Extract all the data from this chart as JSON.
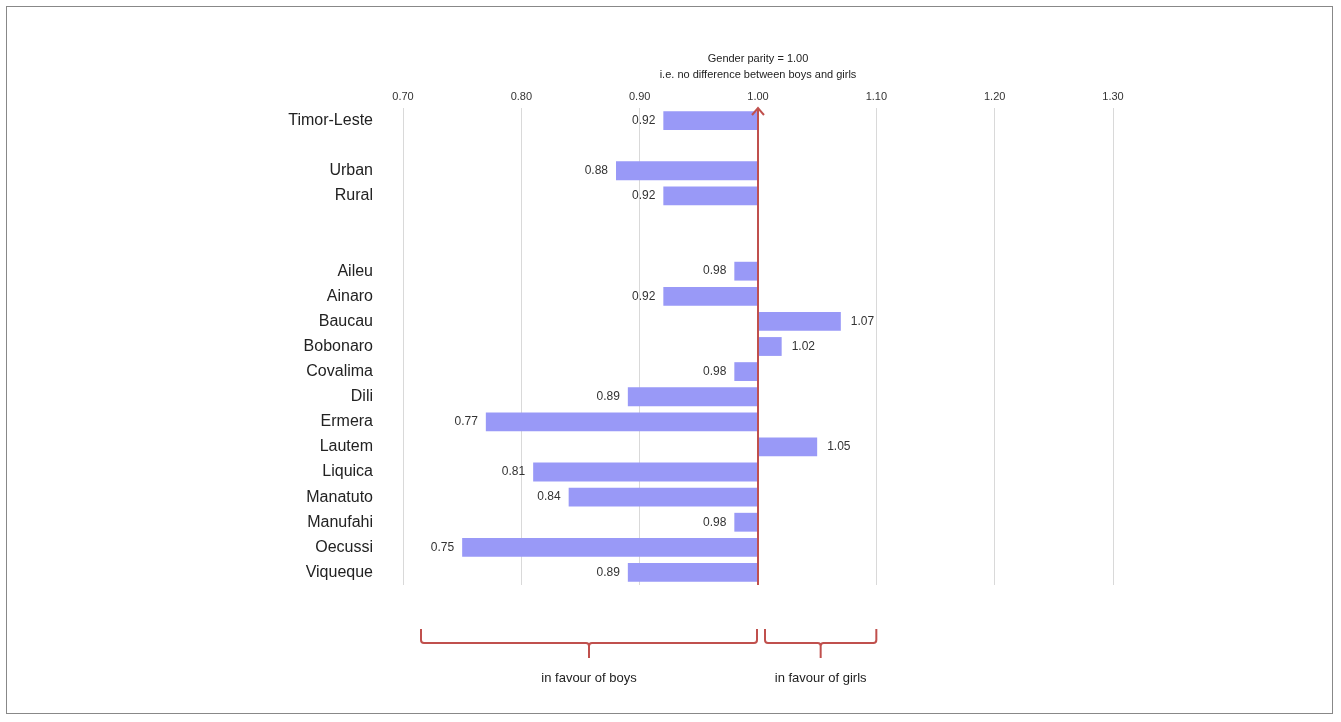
{
  "chart_data": {
    "type": "bar",
    "orientation": "horizontal",
    "color": "#9999f7",
    "categories": [
      "Timor-Leste",
      null,
      "Urban",
      "Rural",
      null,
      null,
      "Aileu",
      "Ainaro",
      "Baucau",
      "Bobonaro",
      "Covalima",
      "Dili",
      "Ermera",
      "Lautem",
      "Liquica",
      "Manatuto",
      "Manufahi",
      "Oecussi",
      "Viqueque"
    ],
    "base": [
      1.0,
      null,
      1.0,
      1.0,
      null,
      null,
      1.0,
      1.0,
      1.0,
      1.0,
      1.0,
      1.0,
      1.0,
      1.0,
      1.0,
      1.0,
      1.0,
      1.0,
      1.0
    ],
    "values": [
      -0.08,
      null,
      -0.12,
      -0.08,
      null,
      null,
      -0.02,
      -0.08,
      0.07,
      0.02,
      -0.02,
      -0.11,
      -0.23,
      0.05,
      -0.19,
      -0.16,
      -0.02,
      -0.25,
      -0.11
    ],
    "value_labels": [
      "0.92",
      null,
      "0.88",
      "0.92",
      null,
      null,
      "0.98",
      "0.92",
      "1.07",
      "1.02",
      "0.98",
      "0.89",
      "0.77",
      "1.05",
      "0.81",
      "0.84",
      "0.98",
      "0.75",
      "0.89"
    ],
    "xlim": [
      0.7,
      1.3
    ],
    "xticks": [
      {
        "value": 0.7,
        "label": "0.70"
      },
      {
        "value": 0.8,
        "label": "0.80"
      },
      {
        "value": 0.9,
        "label": "0.90"
      },
      {
        "value": 1.0,
        "label": "1.00"
      },
      {
        "value": 1.1,
        "label": "1.10"
      },
      {
        "value": 1.2,
        "label": "1.20"
      },
      {
        "value": 1.3,
        "label": "1.30"
      }
    ],
    "grid": "x",
    "legend": false,
    "ref_lines": [
      {
        "axis": "x",
        "value": 1.0,
        "color": "#c0504d"
      }
    ],
    "annotations": [
      "Gender parity = 1.00",
      "i.e. no difference between boys and girls",
      "in favour of boys",
      "in favour of girls"
    ]
  }
}
